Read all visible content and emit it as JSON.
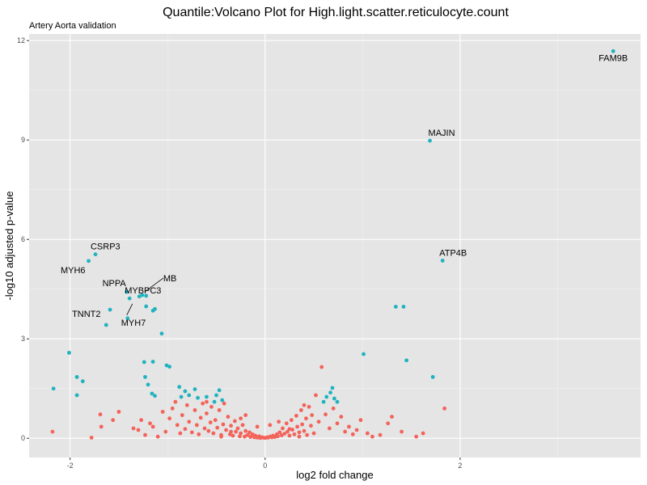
{
  "chart_data": {
    "type": "scatter",
    "title": "Quantile:Volcano Plot for High.light.scatter.reticulocyte.count",
    "subtitle": "Artery Aorta validation",
    "xlabel": "log2 fold change",
    "ylabel": "-log10 adjusted p-value",
    "xlim": [
      -2.42,
      3.85
    ],
    "ylim": [
      -0.58,
      12.2
    ],
    "x_ticks": [
      -2,
      0,
      2
    ],
    "y_ticks": [
      0,
      3,
      6,
      9,
      12
    ],
    "grid": true,
    "legend": "none",
    "colors": {
      "significant": "#1FB3BE",
      "not_significant": "#F4635A",
      "panel": "#E5E5E5",
      "grid_major": "#FFFFFF",
      "grid_minor": "#F2F2F2"
    },
    "series": [
      {
        "values": [
          [
            3.57,
            11.68,
            "FAM9B"
          ],
          [
            1.69,
            8.98,
            "MAJIN"
          ],
          [
            1.82,
            5.36,
            "ATP4B"
          ],
          [
            -1.74,
            5.55,
            "CSRP3"
          ],
          [
            -1.81,
            5.35,
            "MYH6"
          ],
          [
            -1.42,
            4.42,
            "NPPA"
          ],
          [
            -1.39,
            4.22,
            "MYBPC3"
          ],
          [
            -1.26,
            4.32,
            "MB"
          ],
          [
            -1.41,
            3.62,
            "MYH7"
          ],
          [
            -1.59,
            3.88,
            "TNNT2"
          ],
          [
            -1.22,
            4.3,
            ""
          ],
          [
            -1.29,
            4.28,
            ""
          ],
          [
            -1.22,
            3.98,
            ""
          ],
          [
            -1.13,
            3.9,
            ""
          ],
          [
            -1.15,
            3.85,
            ""
          ],
          [
            -1.63,
            3.42,
            ""
          ],
          [
            -1.06,
            3.16,
            ""
          ],
          [
            -2.01,
            2.58,
            ""
          ],
          [
            -1.15,
            2.31,
            ""
          ],
          [
            -1.24,
            2.3,
            ""
          ],
          [
            -1.01,
            2.2,
            ""
          ],
          [
            -0.98,
            2.16,
            ""
          ],
          [
            -1.23,
            1.85,
            ""
          ],
          [
            -1.2,
            1.62,
            ""
          ],
          [
            -1.16,
            1.35,
            ""
          ],
          [
            -1.13,
            1.28,
            ""
          ],
          [
            -0.88,
            1.55,
            ""
          ],
          [
            -0.86,
            1.25,
            ""
          ],
          [
            -0.82,
            1.42,
            ""
          ],
          [
            -0.78,
            1.3,
            ""
          ],
          [
            -0.72,
            1.48,
            ""
          ],
          [
            -0.69,
            1.22,
            ""
          ],
          [
            -0.6,
            1.25,
            ""
          ],
          [
            -0.52,
            1.1,
            ""
          ],
          [
            -0.5,
            1.3,
            ""
          ],
          [
            -0.47,
            1.45,
            ""
          ],
          [
            -0.44,
            1.15,
            ""
          ],
          [
            -2.17,
            1.5,
            ""
          ],
          [
            -1.93,
            1.85,
            ""
          ],
          [
            -1.87,
            1.72,
            ""
          ],
          [
            -1.93,
            1.3,
            ""
          ],
          [
            1.01,
            2.54,
            ""
          ],
          [
            1.45,
            2.35,
            ""
          ],
          [
            1.34,
            3.97,
            ""
          ],
          [
            1.42,
            3.97,
            ""
          ],
          [
            1.72,
            1.85,
            ""
          ],
          [
            0.6,
            1.1,
            ""
          ],
          [
            0.63,
            1.25,
            ""
          ],
          [
            0.67,
            1.38,
            ""
          ],
          [
            0.69,
            1.52,
            ""
          ],
          [
            0.71,
            1.2,
            ""
          ],
          [
            0.74,
            1.1,
            ""
          ]
        ]
      },
      {
        "values": [
          [
            -2.18,
            0.2
          ],
          [
            -1.78,
            0.02
          ],
          [
            -1.69,
            0.72
          ],
          [
            -1.68,
            0.35
          ],
          [
            -1.56,
            0.55
          ],
          [
            -1.5,
            0.8
          ],
          [
            -1.35,
            0.3
          ],
          [
            -1.3,
            0.25
          ],
          [
            -1.27,
            0.55
          ],
          [
            -1.23,
            0.1
          ],
          [
            -1.18,
            0.45
          ],
          [
            -1.15,
            0.35
          ],
          [
            -1.1,
            0.05
          ],
          [
            -1.05,
            0.8
          ],
          [
            -1.02,
            0.2
          ],
          [
            -0.98,
            0.6
          ],
          [
            -0.95,
            0.9
          ],
          [
            -0.92,
            1.1
          ],
          [
            -0.9,
            0.4
          ],
          [
            -0.87,
            0.15
          ],
          [
            -0.85,
            0.7
          ],
          [
            -0.82,
            0.28
          ],
          [
            -0.8,
            1.0
          ],
          [
            -0.78,
            0.5
          ],
          [
            -0.75,
            0.18
          ],
          [
            -0.72,
            0.85
          ],
          [
            -0.7,
            0.4
          ],
          [
            -0.68,
            0.12
          ],
          [
            -0.66,
            0.62
          ],
          [
            -0.64,
            1.05
          ],
          [
            -0.62,
            0.3
          ],
          [
            -0.6,
            0.75
          ],
          [
            -0.58,
            0.22
          ],
          [
            -0.56,
            0.48
          ],
          [
            -0.55,
            0.95
          ],
          [
            -0.53,
            0.15
          ],
          [
            -0.51,
            0.55
          ],
          [
            -0.49,
            0.32
          ],
          [
            -0.47,
            0.85
          ],
          [
            -0.45,
            0.1
          ],
          [
            -0.43,
            0.42
          ],
          [
            -0.42,
            1.05
          ],
          [
            -0.4,
            0.25
          ],
          [
            -0.38,
            0.65
          ],
          [
            -0.36,
            0.12
          ],
          [
            -0.35,
            0.38
          ],
          [
            -0.33,
            0.08
          ],
          [
            -0.31,
            0.52
          ],
          [
            -0.3,
            0.2
          ],
          [
            -0.28,
            0.3
          ],
          [
            -0.26,
            0.06
          ],
          [
            -0.25,
            0.15
          ],
          [
            -0.23,
            0.4
          ],
          [
            -0.21,
            0.05
          ],
          [
            -0.2,
            0.22
          ],
          [
            -0.18,
            0.1
          ],
          [
            -0.16,
            0.18
          ],
          [
            -0.15,
            0.04
          ],
          [
            -0.13,
            0.12
          ],
          [
            -0.11,
            0.03
          ],
          [
            -0.1,
            0.08
          ],
          [
            -0.08,
            0.02
          ],
          [
            -0.06,
            0.06
          ],
          [
            -0.05,
            0.01
          ],
          [
            -0.03,
            0.03
          ],
          [
            -0.02,
            0.02
          ],
          [
            0.0,
            0.01
          ],
          [
            0.02,
            0.03
          ],
          [
            0.03,
            0.02
          ],
          [
            0.05,
            0.05
          ],
          [
            0.07,
            0.03
          ],
          [
            0.08,
            0.08
          ],
          [
            0.1,
            0.04
          ],
          [
            0.12,
            0.12
          ],
          [
            0.13,
            0.06
          ],
          [
            0.15,
            0.18
          ],
          [
            0.17,
            0.09
          ],
          [
            0.18,
            0.3
          ],
          [
            0.2,
            0.14
          ],
          [
            0.22,
            0.45
          ],
          [
            0.23,
            0.2
          ],
          [
            0.25,
            0.08
          ],
          [
            0.27,
            0.55
          ],
          [
            0.28,
            0.26
          ],
          [
            0.3,
            0.12
          ],
          [
            0.32,
            0.68
          ],
          [
            0.33,
            0.35
          ],
          [
            0.35,
            0.18
          ],
          [
            0.37,
            0.85
          ],
          [
            0.38,
            0.42
          ],
          [
            0.4,
            0.22
          ],
          [
            0.42,
            0.6
          ],
          [
            0.43,
            0.1
          ],
          [
            0.45,
            0.95
          ],
          [
            0.47,
            0.38
          ],
          [
            0.48,
            0.7
          ],
          [
            0.5,
            0.15
          ],
          [
            0.52,
            1.3
          ],
          [
            0.55,
            0.5
          ],
          [
            0.58,
            2.15
          ],
          [
            0.62,
            0.72
          ],
          [
            0.66,
            0.3
          ],
          [
            0.7,
            0.9
          ],
          [
            0.74,
            0.45
          ],
          [
            0.78,
            0.65
          ],
          [
            0.82,
            0.2
          ],
          [
            0.86,
            0.35
          ],
          [
            0.9,
            0.12
          ],
          [
            0.94,
            0.25
          ],
          [
            0.98,
            0.55
          ],
          [
            1.05,
            0.15
          ],
          [
            1.1,
            0.05
          ],
          [
            1.18,
            0.1
          ],
          [
            1.26,
            0.45
          ],
          [
            1.3,
            0.65
          ],
          [
            1.4,
            0.2
          ],
          [
            1.55,
            0.05
          ],
          [
            1.62,
            0.15
          ],
          [
            1.84,
            0.9
          ],
          [
            -0.25,
            0.6
          ],
          [
            0.05,
            0.4
          ],
          [
            -0.08,
            0.35
          ],
          [
            0.14,
            0.5
          ],
          [
            -0.2,
            0.7
          ],
          [
            0.4,
            1.0
          ],
          [
            -0.6,
            1.1
          ],
          [
            0.25,
            0.28
          ],
          [
            -0.35,
            0.2
          ],
          [
            0.35,
            0.05
          ],
          [
            -0.45,
            0.05
          ]
        ]
      }
    ],
    "labels": [
      {
        "text": "FAM9B",
        "point": 0
      },
      {
        "text": "MAJIN",
        "point": 1
      },
      {
        "text": "ATP4B",
        "point": 2
      },
      {
        "text": "CSRP3",
        "point": 3
      },
      {
        "text": "MYH6",
        "point": 4
      },
      {
        "text": "NPPA",
        "point": 5
      },
      {
        "text": "MYBPC3",
        "point": 6
      },
      {
        "text": "MB",
        "point": 7
      },
      {
        "text": "MYH7",
        "point": 8
      },
      {
        "text": "TNNT2",
        "point": 9
      }
    ]
  }
}
